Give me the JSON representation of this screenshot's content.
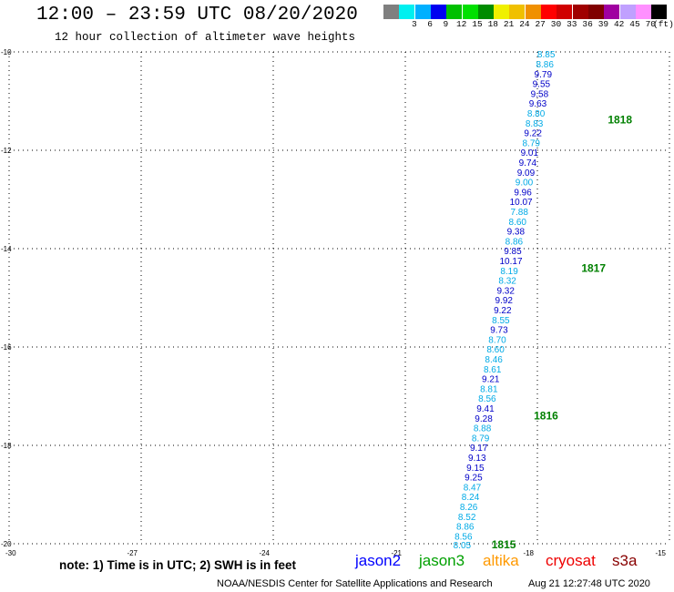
{
  "header": {
    "title": "12:00 – 23:59 UTC 08/20/2020",
    "subtitle": "12 hour collection of altimeter wave heights"
  },
  "legend": {
    "unit": "(ft)",
    "bins": [
      {
        "label": "",
        "color": "#7f7f7f"
      },
      {
        "label": "3",
        "color": "#00f0f0"
      },
      {
        "label": "6",
        "color": "#00b0ff"
      },
      {
        "label": "9",
        "color": "#0000f0"
      },
      {
        "label": "12",
        "color": "#00c000"
      },
      {
        "label": "15",
        "color": "#00e000"
      },
      {
        "label": "18",
        "color": "#008c00"
      },
      {
        "label": "21",
        "color": "#f0f000"
      },
      {
        "label": "24",
        "color": "#f0c000"
      },
      {
        "label": "27",
        "color": "#f09000"
      },
      {
        "label": "30",
        "color": "#ff0000"
      },
      {
        "label": "33",
        "color": "#d00000"
      },
      {
        "label": "36",
        "color": "#a00000"
      },
      {
        "label": "39",
        "color": "#800000"
      },
      {
        "label": "42",
        "color": "#a000a0"
      },
      {
        "label": "45",
        "color": "#c0a0ff"
      },
      {
        "label": "70",
        "color": "#ff90ff"
      },
      {
        "label": "",
        "color": "#000000"
      }
    ]
  },
  "chart_data": {
    "type": "scatter",
    "xlim": [
      -30,
      -15
    ],
    "ylim": [
      -20,
      -10
    ],
    "x_ticks": [
      "-30",
      "-27",
      "-24",
      "-21",
      "-18",
      "-15"
    ],
    "y_ticks": [
      "-10",
      "-12",
      "-14",
      "-16",
      "-18",
      "-20"
    ],
    "grid": true,
    "colors": {
      "dark": "#0000c8",
      "light": "#00aae6",
      "time": "#008000"
    },
    "points": [
      {
        "x": -17.8,
        "y": -10.04,
        "v": "8.85",
        "c": "light"
      },
      {
        "x": -17.83,
        "y": -10.24,
        "v": "8.86",
        "c": "light"
      },
      {
        "x": -17.87,
        "y": -10.44,
        "v": "9.79",
        "c": "dark"
      },
      {
        "x": -17.91,
        "y": -10.64,
        "v": "9.55",
        "c": "dark"
      },
      {
        "x": -17.95,
        "y": -10.84,
        "v": "9.58",
        "c": "dark"
      },
      {
        "x": -17.99,
        "y": -11.04,
        "v": "9.63",
        "c": "dark"
      },
      {
        "x": -18.03,
        "y": -11.24,
        "v": "8.80",
        "c": "light"
      },
      {
        "x": -18.07,
        "y": -11.44,
        "v": "8.83",
        "c": "light"
      },
      {
        "x": -18.1,
        "y": -11.64,
        "v": "9.22",
        "c": "dark"
      },
      {
        "x": -18.14,
        "y": -11.84,
        "v": "8.79",
        "c": "light"
      },
      {
        "x": -18.18,
        "y": -12.04,
        "v": "9.01",
        "c": "dark"
      },
      {
        "x": -18.22,
        "y": -12.24,
        "v": "9.74",
        "c": "dark"
      },
      {
        "x": -18.26,
        "y": -12.44,
        "v": "9.09",
        "c": "dark"
      },
      {
        "x": -18.3,
        "y": -12.64,
        "v": "9.00",
        "c": "light"
      },
      {
        "x": -18.33,
        "y": -12.84,
        "v": "9.96",
        "c": "dark"
      },
      {
        "x": -18.37,
        "y": -13.04,
        "v": "10.07",
        "c": "dark"
      },
      {
        "x": -18.41,
        "y": -13.24,
        "v": "7.88",
        "c": "light"
      },
      {
        "x": -18.45,
        "y": -13.44,
        "v": "8.60",
        "c": "light"
      },
      {
        "x": -18.49,
        "y": -13.64,
        "v": "9.38",
        "c": "dark"
      },
      {
        "x": -18.53,
        "y": -13.84,
        "v": "8.86",
        "c": "light"
      },
      {
        "x": -18.56,
        "y": -14.04,
        "v": "9.85",
        "c": "dark"
      },
      {
        "x": -18.6,
        "y": -14.24,
        "v": "10.17",
        "c": "dark"
      },
      {
        "x": -18.64,
        "y": -14.44,
        "v": "8.19",
        "c": "light"
      },
      {
        "x": -18.68,
        "y": -14.64,
        "v": "8.32",
        "c": "light"
      },
      {
        "x": -18.72,
        "y": -14.84,
        "v": "9.32",
        "c": "dark"
      },
      {
        "x": -18.76,
        "y": -15.04,
        "v": "9.92",
        "c": "dark"
      },
      {
        "x": -18.79,
        "y": -15.24,
        "v": "9.22",
        "c": "dark"
      },
      {
        "x": -18.83,
        "y": -15.44,
        "v": "8.55",
        "c": "light"
      },
      {
        "x": -18.87,
        "y": -15.64,
        "v": "9.73",
        "c": "dark"
      },
      {
        "x": -18.91,
        "y": -15.84,
        "v": "8.70",
        "c": "light"
      },
      {
        "x": -18.95,
        "y": -16.04,
        "v": "8.60",
        "c": "light"
      },
      {
        "x": -18.99,
        "y": -16.24,
        "v": "8.46",
        "c": "light"
      },
      {
        "x": -19.02,
        "y": -16.44,
        "v": "8.61",
        "c": "light"
      },
      {
        "x": -19.06,
        "y": -16.64,
        "v": "9.21",
        "c": "dark"
      },
      {
        "x": -19.1,
        "y": -16.84,
        "v": "8.81",
        "c": "light"
      },
      {
        "x": -19.14,
        "y": -17.04,
        "v": "8.56",
        "c": "light"
      },
      {
        "x": -19.18,
        "y": -17.24,
        "v": "9.41",
        "c": "dark"
      },
      {
        "x": -19.22,
        "y": -17.44,
        "v": "9.28",
        "c": "dark"
      },
      {
        "x": -19.25,
        "y": -17.64,
        "v": "8.88",
        "c": "light"
      },
      {
        "x": -19.29,
        "y": -17.84,
        "v": "8.79",
        "c": "light"
      },
      {
        "x": -19.33,
        "y": -18.04,
        "v": "9.17",
        "c": "dark"
      },
      {
        "x": -19.37,
        "y": -18.24,
        "v": "9.13",
        "c": "dark"
      },
      {
        "x": -19.41,
        "y": -18.44,
        "v": "9.15",
        "c": "dark"
      },
      {
        "x": -19.45,
        "y": -18.64,
        "v": "9.25",
        "c": "dark"
      },
      {
        "x": -19.48,
        "y": -18.84,
        "v": "8.47",
        "c": "light"
      },
      {
        "x": -19.52,
        "y": -19.04,
        "v": "8.24",
        "c": "light"
      },
      {
        "x": -19.56,
        "y": -19.24,
        "v": "8.26",
        "c": "light"
      },
      {
        "x": -19.6,
        "y": -19.44,
        "v": "8.52",
        "c": "light"
      },
      {
        "x": -19.64,
        "y": -19.64,
        "v": "8.86",
        "c": "light"
      },
      {
        "x": -19.68,
        "y": -19.84,
        "v": "8.56",
        "c": "light"
      },
      {
        "x": -19.71,
        "y": -20.02,
        "v": "8.05",
        "c": "light"
      }
    ],
    "time_labels": [
      {
        "x": -16.4,
        "y": -11.38,
        "text": "1818"
      },
      {
        "x": -17.0,
        "y": -14.4,
        "text": "1817"
      },
      {
        "x": -18.08,
        "y": -17.4,
        "text": "1816"
      },
      {
        "x": -19.04,
        "y": -20.02,
        "text": "1815"
      }
    ]
  },
  "footer": {
    "note": "note: 1) Time is in UTC; 2) SWH is in feet",
    "satellites": [
      {
        "name": "jason2",
        "color": "#0000ff"
      },
      {
        "name": "jason3",
        "color": "#00a000"
      },
      {
        "name": "altika",
        "color": "#ff9900"
      },
      {
        "name": "cryosat",
        "color": "#ee0000"
      },
      {
        "name": "s3a",
        "color": "#880000"
      }
    ],
    "credit": "NOAA/NESDIS Center for Satellite Applications and Research",
    "timestamp": "Aug 21 12:27:48 UTC 2020"
  }
}
